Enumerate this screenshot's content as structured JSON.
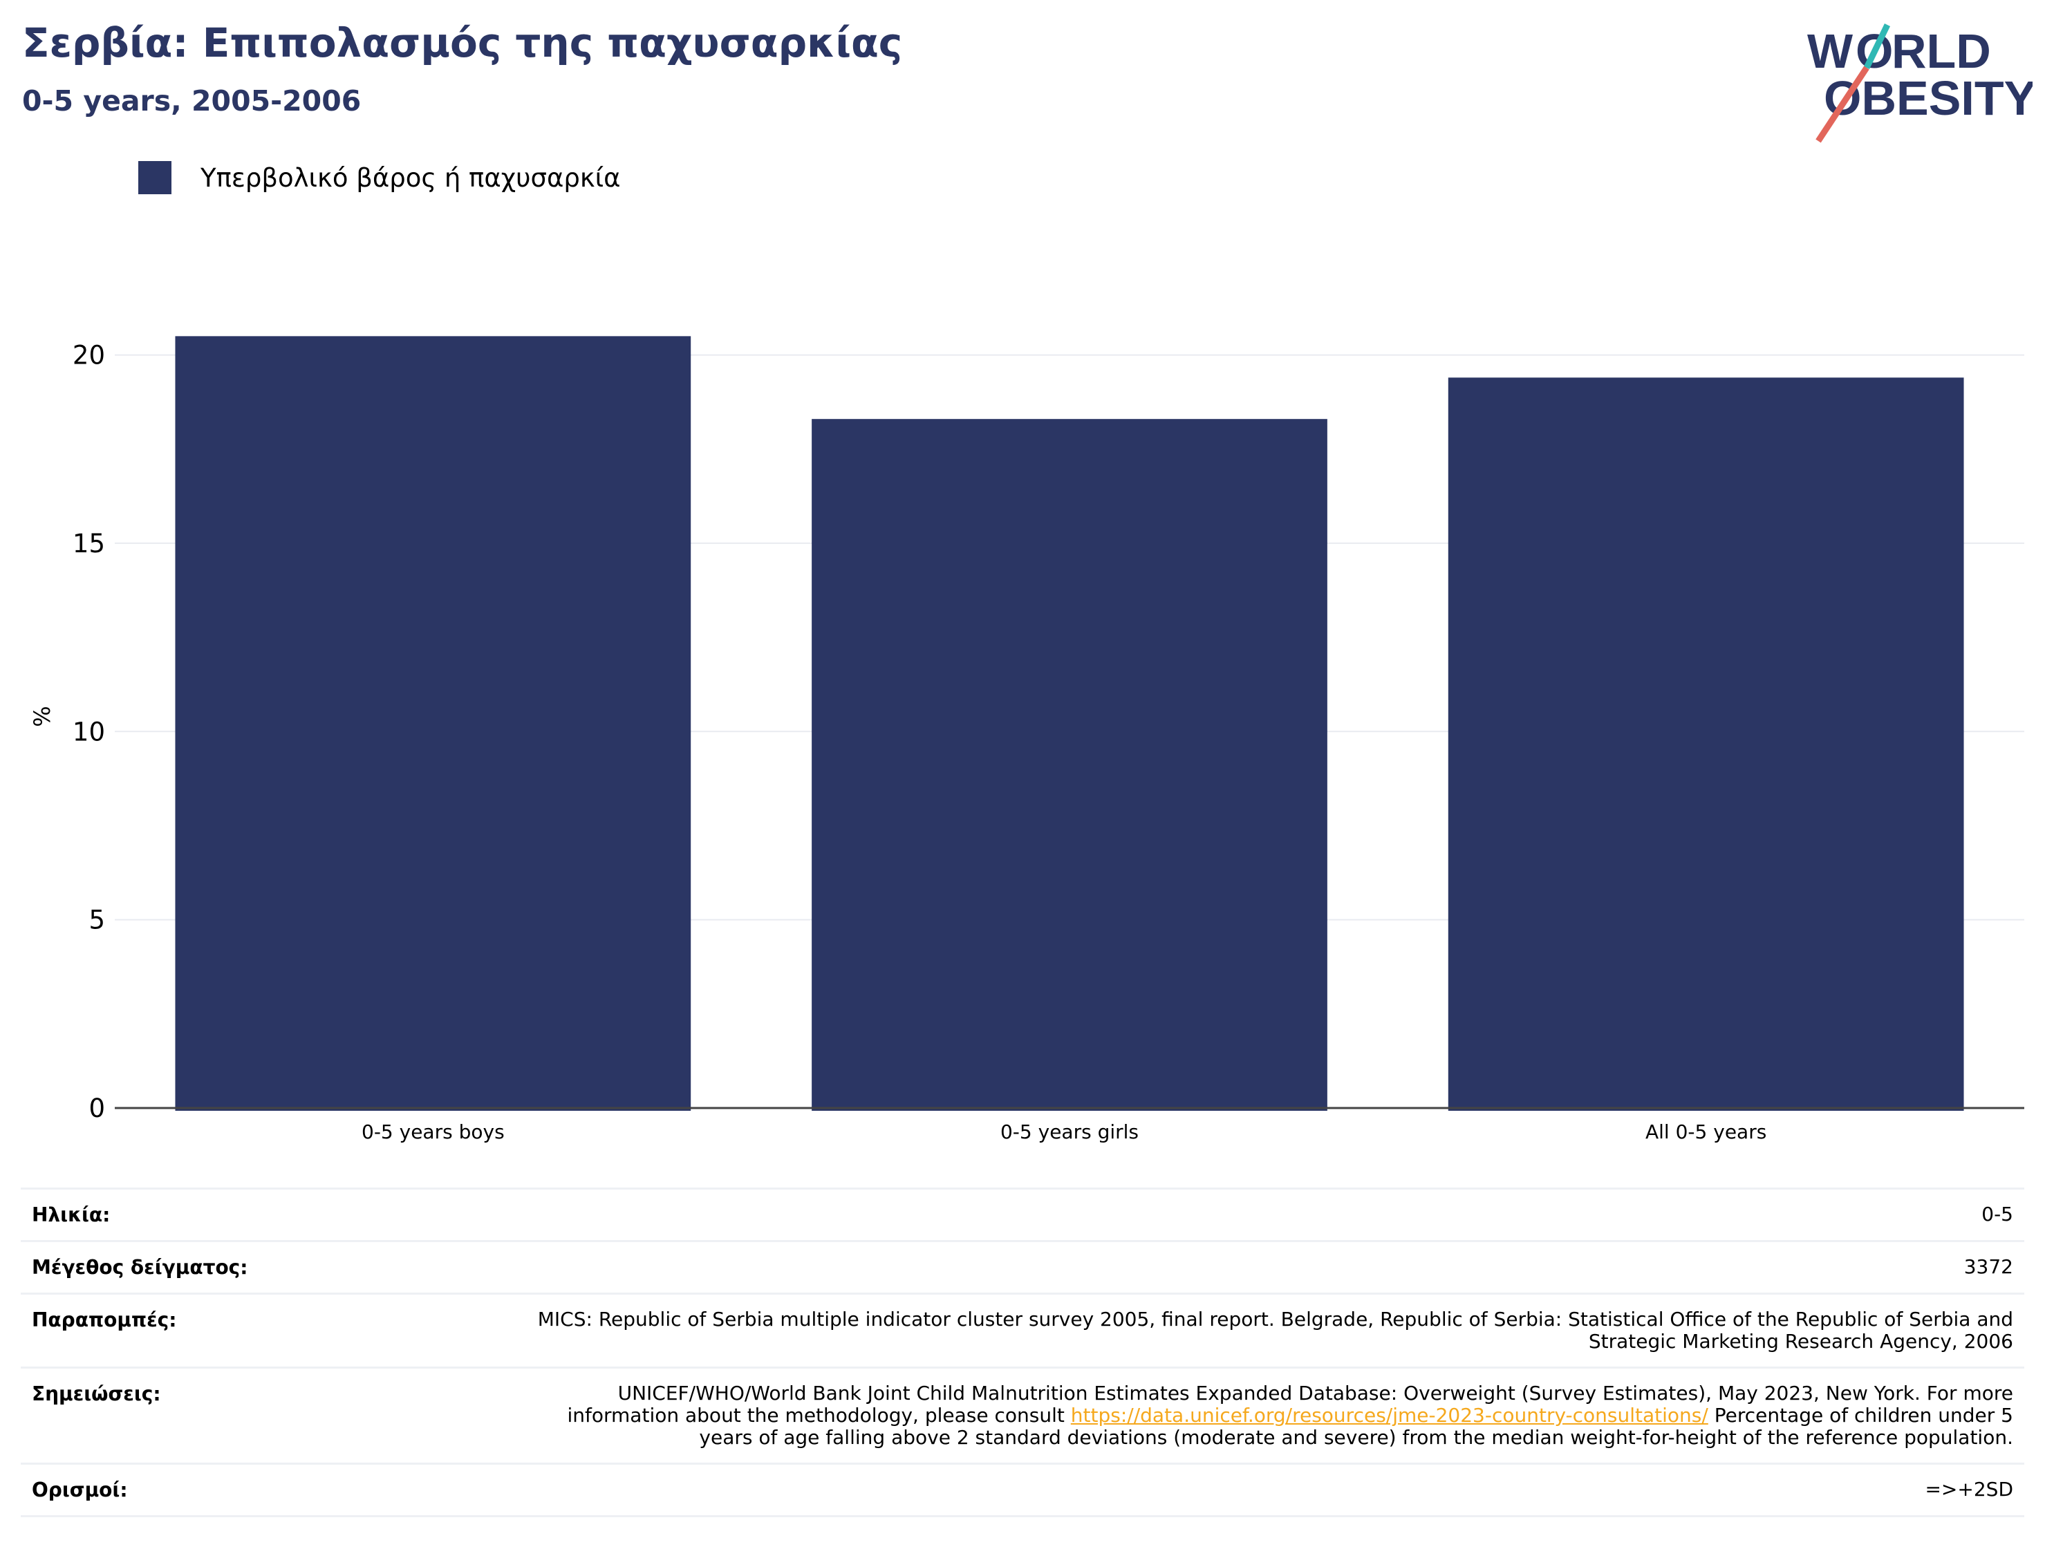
{
  "header": {
    "title": "Σερβία: Επιπολασμός της παχυσαρκίας",
    "subtitle": "0-5 years, 2005-2006"
  },
  "logo": {
    "line1": "WORLD",
    "line2": "OBESITY"
  },
  "legend": {
    "label": "Υπερβολικό βάρος ή παχυσαρκία",
    "color": "#2b3664"
  },
  "chart_data": {
    "type": "bar",
    "categories": [
      "0-5 years boys",
      "0-5 years girls",
      "All 0-5 years"
    ],
    "series": [
      {
        "name": "Υπερβολικό βάρος ή παχυσαρκία",
        "values": [
          20.5,
          18.3,
          19.4
        ]
      }
    ],
    "ylabel": "%",
    "ylim": [
      0,
      20.8
    ],
    "yticks": [
      0,
      5,
      10,
      15,
      20
    ],
    "grid": true,
    "legend_position": "top-left"
  },
  "meta": {
    "age_label": "Ηλικία:",
    "age_value": "0-5",
    "sample_label": "Μέγεθος δείγματος:",
    "sample_value": "3372",
    "refs_label": "Παραπομπές:",
    "refs_value": "MICS: Republic of Serbia multiple indicator cluster survey 2005, final report. Belgrade, Republic of Serbia: Statistical Office of the Republic of Serbia and Strategic Marketing Research Agency, 2006",
    "notes_label": "Σημειώσεις:",
    "notes_value_before": "UNICEF/WHO/World Bank Joint Child Malnutrition Estimates Expanded Database: Overweight (Survey Estimates), May 2023, New York. For more information about the methodology, please consult ",
    "notes_link": "https://data.unicef.org/resources/jme-2023-country-consultations/",
    "notes_value_after": " Percentage of children under 5 years of age falling above 2 standard deviations (moderate and severe) from the median weight-for-height of the reference population.",
    "defs_label": "Ορισμοί:",
    "defs_value": "=>+2SD"
  }
}
